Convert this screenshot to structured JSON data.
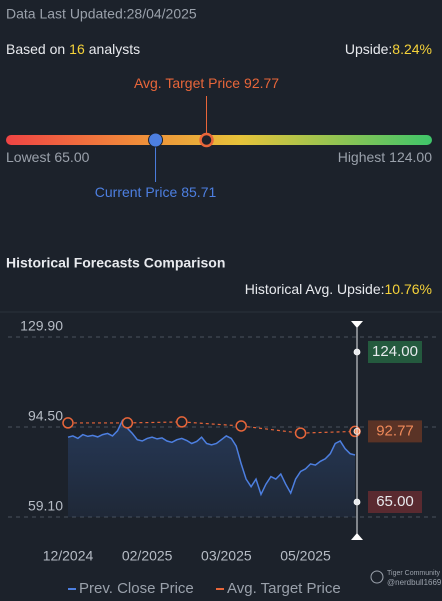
{
  "header": {
    "updated": "Data Last Updated:28/04/2025"
  },
  "summary": {
    "prefix": "Based on",
    "count": 16,
    "suffix": "analysts",
    "upside_label": "Upside:",
    "upside": "8.24%"
  },
  "gauge": {
    "target_label": "Avg. Target Price",
    "target": 92.77,
    "current_label": "Current Price",
    "current": 85.71,
    "lowest_label": "Lowest",
    "lowest": {
      "value": 65,
      "label": "65.00"
    },
    "highest_label": "Highest",
    "highest": {
      "value": 124,
      "label": "124.00"
    }
  },
  "chart_data": {
    "type": "line",
    "title": "Historical Forecasts Comparison",
    "upside_label": "Historical Avg. Upside:",
    "upside": "10.76%",
    "categories": [
      "12/2024",
      null,
      null,
      null,
      null,
      null,
      null,
      null,
      null,
      null,
      null,
      null,
      null,
      null,
      null,
      null,
      "02/2025",
      null,
      null,
      null,
      null,
      null,
      null,
      null,
      null,
      null,
      null,
      null,
      null,
      null,
      null,
      null,
      "03/2025",
      null,
      null,
      null,
      null,
      null,
      null,
      null,
      null,
      null,
      null,
      null,
      null,
      null,
      null,
      null,
      "05/2025",
      null,
      null,
      null,
      null,
      null,
      null,
      null,
      null,
      null,
      null
    ],
    "ylim": [
      59.1,
      129.9
    ],
    "yticks": [
      {
        "value": 129.9,
        "label": "129.90"
      },
      {
        "value": 94.5,
        "label": "94.50"
      },
      {
        "value": 59.1,
        "label": "59.10"
      }
    ],
    "grid": true,
    "series": [
      {
        "name": "Prev. Close Price",
        "color": "#4d7fe0",
        "values": [
          90.5,
          91,
          90,
          91.5,
          90.8,
          91.2,
          90.6,
          91.5,
          92,
          91,
          93,
          97,
          94,
          92,
          89.5,
          89,
          90,
          90.5,
          89.8,
          90.2,
          89,
          88.5,
          89.5,
          90,
          89.2,
          88,
          88.8,
          90.5,
          88,
          87.5,
          88,
          89.5,
          91,
          90,
          87,
          80,
          74,
          71,
          74,
          68,
          72,
          75,
          74,
          76,
          72,
          68.5,
          74,
          77,
          78,
          80,
          79.5,
          81,
          82,
          84,
          88,
          89,
          86,
          84,
          83.5
        ]
      },
      {
        "name": "Avg. Target Price",
        "color": "#e8663a",
        "values": [
          96.1,
          null,
          null,
          null,
          null,
          null,
          null,
          null,
          null,
          null,
          null,
          null,
          96.1,
          null,
          null,
          null,
          null,
          null,
          null,
          null,
          null,
          null,
          null,
          96.5,
          null,
          null,
          null,
          null,
          null,
          null,
          null,
          null,
          null,
          null,
          null,
          94.9,
          null,
          null,
          null,
          null,
          null,
          null,
          null,
          null,
          null,
          null,
          null,
          92.1,
          null,
          null,
          null,
          null,
          null,
          null,
          null,
          null,
          null,
          null,
          92.77
        ]
      }
    ]
  },
  "footer": {
    "brand": "Tiger Community",
    "user": "@nerdbull1669"
  }
}
